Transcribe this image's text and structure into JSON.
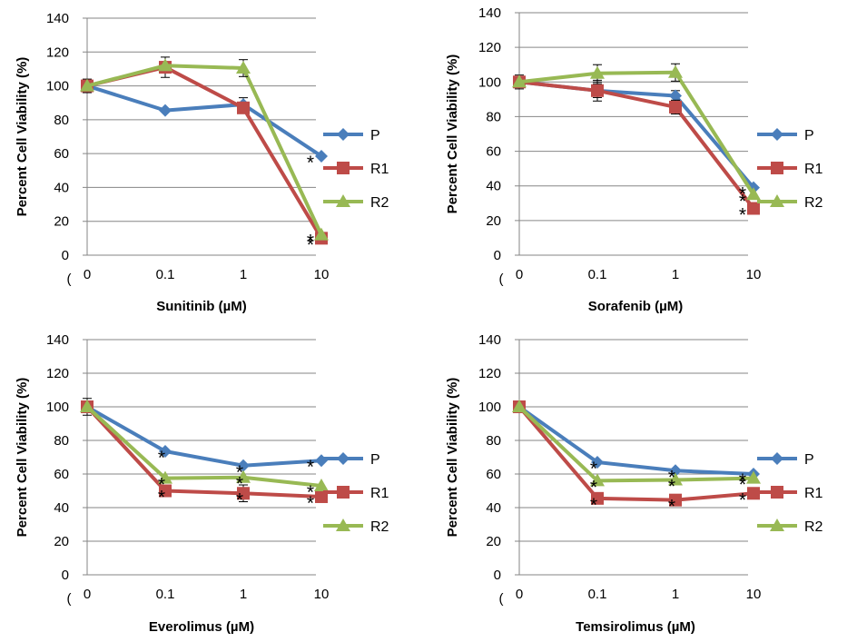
{
  "colors": {
    "P": "#4a7ebb",
    "R1": "#be4b48",
    "R2": "#98b954",
    "grid": "#868686",
    "axis": "#868686"
  },
  "chart_data": [
    {
      "type": "line",
      "title": "",
      "xlabel": "Sunitinib (µM)",
      "ylabel": "Percent Cell Viability (%)",
      "categories": [
        "0",
        "0.1",
        "1",
        "10"
      ],
      "ylim": [
        0,
        140
      ],
      "yticks": [
        0,
        20,
        40,
        60,
        80,
        100,
        120,
        140
      ],
      "grid": true,
      "legend": "right",
      "series": [
        {
          "name": "P",
          "marker": "diamond",
          "values": [
            100,
            85.5,
            89,
            58.5
          ],
          "errors": [
            0,
            0,
            4,
            0
          ]
        },
        {
          "name": "R1",
          "marker": "square",
          "values": [
            100,
            111,
            87,
            10
          ],
          "errors": [
            4,
            6,
            0,
            0
          ]
        },
        {
          "name": "R2",
          "marker": "triangle",
          "values": [
            100,
            112,
            110.5,
            12
          ],
          "errors": [
            0,
            0,
            5,
            0
          ]
        }
      ],
      "annotations": [
        {
          "category": "10",
          "series": "P",
          "text": "*"
        },
        {
          "category": "10",
          "series": "R1",
          "text": "*"
        },
        {
          "category": "10",
          "series": "R2",
          "text": "*"
        }
      ]
    },
    {
      "type": "line",
      "title": "",
      "xlabel": "Sorafenib (µM)",
      "ylabel": "Percent Cell Viability (%)",
      "categories": [
        "0",
        "0.1",
        "1",
        "10"
      ],
      "ylim": [
        0,
        140
      ],
      "yticks": [
        0,
        20,
        40,
        60,
        80,
        100,
        120,
        140
      ],
      "grid": true,
      "legend": "right",
      "series": [
        {
          "name": "P",
          "marker": "diamond",
          "values": [
            100,
            95,
            92,
            39
          ],
          "errors": [
            0,
            4,
            3,
            0
          ]
        },
        {
          "name": "R1",
          "marker": "square",
          "values": [
            100,
            95,
            85.5,
            27
          ],
          "errors": [
            4,
            6,
            4,
            0
          ]
        },
        {
          "name": "R2",
          "marker": "triangle",
          "values": [
            100,
            105,
            105.5,
            35
          ],
          "errors": [
            0,
            5,
            5,
            0
          ]
        }
      ],
      "annotations": [
        {
          "category": "10",
          "series": "P",
          "text": "*"
        },
        {
          "category": "10",
          "series": "R1",
          "text": "*"
        },
        {
          "category": "10",
          "series": "R2",
          "text": "*"
        }
      ]
    },
    {
      "type": "line",
      "title": "",
      "xlabel": "Everolimus (µM)",
      "ylabel": "Percent Cell Viability (%)",
      "categories": [
        "0",
        "0.1",
        "1",
        "10"
      ],
      "ylim": [
        0,
        140
      ],
      "yticks": [
        0,
        20,
        40,
        60,
        80,
        100,
        120,
        140
      ],
      "grid": true,
      "legend": "right",
      "series": [
        {
          "name": "P",
          "marker": "diamond",
          "values": [
            100,
            73.5,
            65,
            68
          ],
          "errors": [
            5,
            0,
            0,
            0
          ]
        },
        {
          "name": "R1",
          "marker": "square",
          "values": [
            100,
            50,
            48.5,
            46.5
          ],
          "errors": [
            0,
            0,
            5,
            0
          ]
        },
        {
          "name": "R2",
          "marker": "triangle",
          "values": [
            100,
            57.5,
            58,
            53
          ],
          "errors": [
            0,
            0,
            0,
            0
          ]
        }
      ],
      "annotations": [
        {
          "category": "0.1",
          "series": "P",
          "text": "*"
        },
        {
          "category": "0.1",
          "series": "R1",
          "text": "*"
        },
        {
          "category": "0.1",
          "series": "R2",
          "text": "*"
        },
        {
          "category": "1",
          "series": "P",
          "text": "*"
        },
        {
          "category": "1",
          "series": "R1",
          "text": "*"
        },
        {
          "category": "1",
          "series": "R2",
          "text": "*"
        },
        {
          "category": "10",
          "series": "P",
          "text": "*"
        },
        {
          "category": "10",
          "series": "R1",
          "text": "*"
        },
        {
          "category": "10",
          "series": "R2",
          "text": "*"
        }
      ]
    },
    {
      "type": "line",
      "title": "",
      "xlabel": "Temsirolimus (µM)",
      "ylabel": "Percent Cell Viability (%)",
      "categories": [
        "0",
        "0.1",
        "1",
        "10"
      ],
      "ylim": [
        0,
        140
      ],
      "yticks": [
        0,
        20,
        40,
        60,
        80,
        100,
        120,
        140
      ],
      "grid": true,
      "legend": "right",
      "series": [
        {
          "name": "P",
          "marker": "diamond",
          "values": [
            100,
            67,
            62,
            60
          ],
          "errors": [
            0,
            0,
            0,
            0
          ]
        },
        {
          "name": "R1",
          "marker": "square",
          "values": [
            100,
            45.5,
            44.5,
            48.5
          ],
          "errors": [
            0,
            0,
            0,
            0
          ]
        },
        {
          "name": "R2",
          "marker": "triangle",
          "values": [
            100,
            56,
            56.5,
            57.5
          ],
          "errors": [
            0,
            0,
            0,
            0
          ]
        }
      ],
      "annotations": [
        {
          "category": "0.1",
          "series": "P",
          "text": "*"
        },
        {
          "category": "0.1",
          "series": "R1",
          "text": "*"
        },
        {
          "category": "0.1",
          "series": "R2",
          "text": "*"
        },
        {
          "category": "1",
          "series": "P",
          "text": "*"
        },
        {
          "category": "1",
          "series": "R1",
          "text": "*"
        },
        {
          "category": "1",
          "series": "R2",
          "text": "*"
        },
        {
          "category": "10",
          "series": "P",
          "text": "*"
        },
        {
          "category": "10",
          "series": "R1",
          "text": "*"
        },
        {
          "category": "10",
          "series": "R2",
          "text": "*"
        }
      ]
    }
  ]
}
